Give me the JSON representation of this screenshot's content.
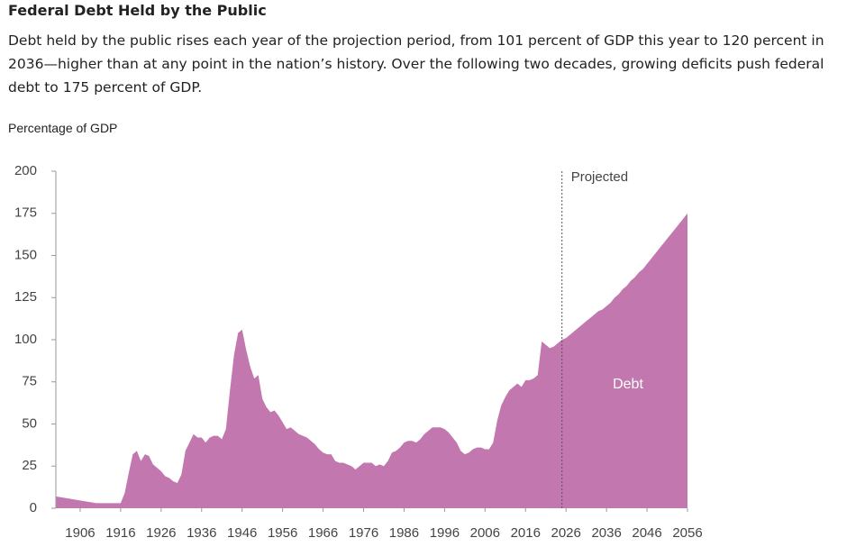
{
  "chart_data": {
    "type": "area",
    "title": "Federal Debt Held by the Public",
    "subtitle": "Debt held by the public rises each year of the projection period, from 101 percent of GDP this year to 120 percent in 2036—higher than at any point in the nation’s history. Over the following two decades, growing deficits push federal debt to 175 percent of GDP.",
    "y_label": "Percentage of GDP",
    "annotation": {
      "text": "Projected",
      "x": 2025
    },
    "x": [
      1900,
      1905,
      1910,
      1915,
      1916,
      1917,
      1918,
      1919,
      1920,
      1921,
      1922,
      1923,
      1924,
      1925,
      1926,
      1927,
      1928,
      1929,
      1930,
      1931,
      1932,
      1933,
      1934,
      1935,
      1936,
      1937,
      1938,
      1939,
      1940,
      1941,
      1942,
      1943,
      1944,
      1945,
      1946,
      1947,
      1948,
      1949,
      1950,
      1951,
      1952,
      1953,
      1954,
      1955,
      1956,
      1957,
      1958,
      1959,
      1960,
      1961,
      1962,
      1963,
      1964,
      1965,
      1966,
      1967,
      1968,
      1969,
      1970,
      1971,
      1972,
      1973,
      1974,
      1975,
      1976,
      1977,
      1978,
      1979,
      1980,
      1981,
      1982,
      1983,
      1984,
      1985,
      1986,
      1987,
      1988,
      1989,
      1990,
      1991,
      1992,
      1993,
      1994,
      1995,
      1996,
      1997,
      1998,
      1999,
      2000,
      2001,
      2002,
      2003,
      2004,
      2005,
      2006,
      2007,
      2008,
      2009,
      2010,
      2011,
      2012,
      2013,
      2014,
      2015,
      2016,
      2017,
      2018,
      2019,
      2020,
      2021,
      2022,
      2023,
      2024,
      2025,
      2026,
      2027,
      2028,
      2029,
      2030,
      2031,
      2032,
      2033,
      2034,
      2035,
      2036,
      2037,
      2038,
      2039,
      2040,
      2041,
      2042,
      2043,
      2044,
      2045,
      2046,
      2047,
      2048,
      2049,
      2050,
      2051,
      2052,
      2053,
      2054,
      2055,
      2056
    ],
    "series": [
      {
        "name": "Debt",
        "color": "#c278ae",
        "values": [
          7,
          5,
          3,
          3,
          3,
          9,
          21,
          32,
          34,
          28,
          32,
          31,
          26,
          24,
          22,
          19,
          18,
          16,
          15,
          20,
          34,
          39,
          44,
          42,
          42,
          39,
          42,
          43,
          43,
          41,
          47,
          70,
          91,
          104,
          106,
          94,
          84,
          77,
          79,
          65,
          60,
          57,
          58,
          55,
          51,
          47,
          48,
          46,
          44,
          43,
          42,
          40,
          38,
          35,
          33,
          32,
          32,
          28,
          27,
          27,
          26,
          25,
          23,
          25,
          27,
          27,
          27,
          25,
          26,
          25,
          28,
          33,
          34,
          36,
          39,
          40,
          40,
          39,
          41,
          44,
          46,
          48,
          48,
          48,
          47,
          45,
          42,
          39,
          34,
          32,
          33,
          35,
          36,
          36,
          35,
          35,
          39,
          52,
          61,
          66,
          70,
          72,
          74,
          72,
          76,
          76,
          77,
          79,
          99,
          97,
          95,
          96,
          98,
          100,
          101,
          103,
          105,
          107,
          109,
          111,
          113,
          115,
          117,
          118,
          120,
          122,
          125,
          127,
          130,
          132,
          135,
          137,
          140,
          142,
          145,
          148,
          151,
          154,
          157,
          160,
          163,
          166,
          169,
          172,
          175
        ]
      }
    ],
    "xlim": [
      1900,
      2056
    ],
    "xticks": [
      1906,
      1916,
      1926,
      1936,
      1946,
      1956,
      1966,
      1976,
      1986,
      1996,
      2006,
      2016,
      2026,
      2036,
      2046,
      2056
    ],
    "ylim": [
      0,
      200
    ],
    "yticks": [
      0,
      25,
      50,
      75,
      100,
      125,
      150,
      175,
      200
    ]
  }
}
